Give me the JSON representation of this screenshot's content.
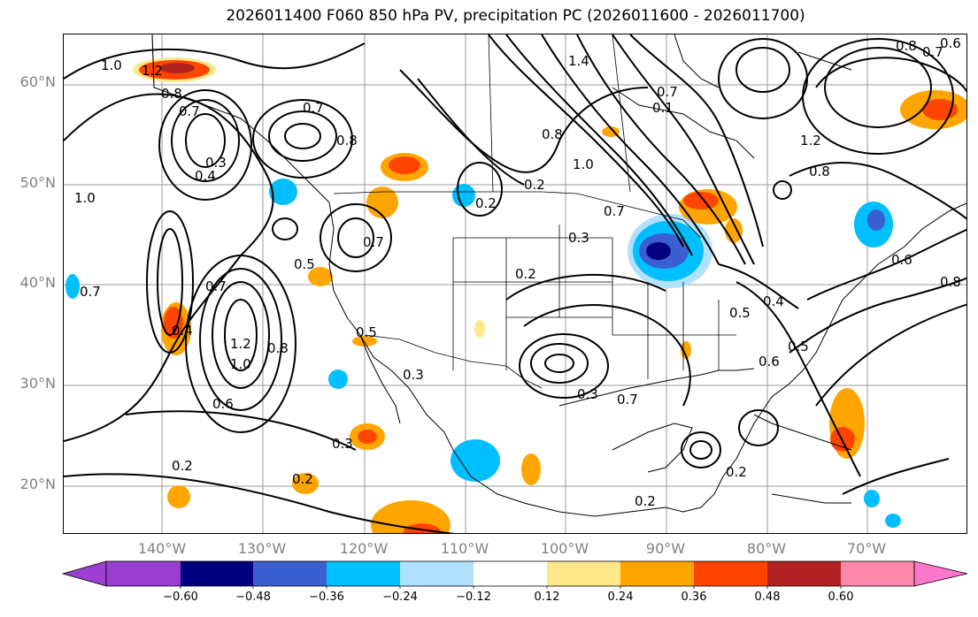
{
  "title": "2026011400 F060 850 hPa PV, precipitation PC (2026011600 - 2026011700)",
  "lat_labels": [
    "60°N",
    "50°N",
    "40°N",
    "30°N",
    "20°N"
  ],
  "lon_labels": [
    "140°W",
    "130°W",
    "120°W",
    "110°W",
    "100°W",
    "90°W",
    "80°W",
    "70°W"
  ],
  "contour_labels": [
    "1.0",
    "1.2",
    "0.8",
    "0.7",
    "0.3",
    "0.4",
    "1.0",
    "0.7",
    "0.8",
    "0.7",
    "0.5",
    "0.7",
    "1.2",
    "1.0",
    "0.8",
    "0.6",
    "0.4",
    "0.7",
    "0.2",
    "0.3",
    "0.5",
    "0.2",
    "0.2",
    "0.3",
    "0.3",
    "0.2",
    "0.7",
    "1.0",
    "0.7",
    "0.8",
    "0.2",
    "0.3",
    "0.7",
    "0.5",
    "0.4",
    "0.6",
    "0.5",
    "0.2",
    "0.2",
    "1.2",
    "0.8",
    "0.7",
    "0.6",
    "0.8",
    "0.6",
    "1.4",
    "0.8",
    "0.1"
  ],
  "colorbar": {
    "ticks": [
      "−0.60",
      "−0.48",
      "−0.36",
      "−0.24",
      "−0.12",
      "0.12",
      "0.24",
      "0.36",
      "0.48",
      "0.60"
    ],
    "colors": [
      "#9b3fd0",
      "#00007f",
      "#3a5fd0",
      "#00bfff",
      "#b0e2ff",
      "#ffffff",
      "#ffe88a",
      "#ffa500",
      "#ff4500",
      "#b22222",
      "#ff88aa",
      "#ff77cc"
    ]
  }
}
